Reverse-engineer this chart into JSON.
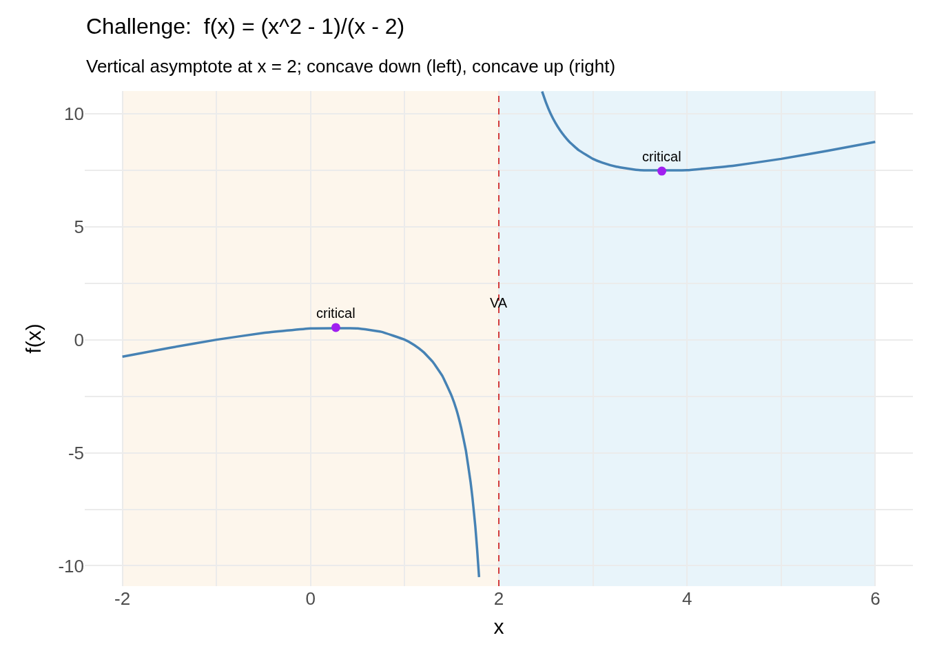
{
  "chart_data": {
    "type": "line",
    "title": "Challenge:  f(x) = (x^2 - 1)/(x - 2)",
    "subtitle": "Vertical asymptote at x = 2; concave down (left), concave up (right)",
    "xlabel": "x",
    "ylabel": "f(x)",
    "xlim": [
      -2.4,
      6.4
    ],
    "ylim": [
      -10.9,
      11
    ],
    "xticks": [
      -2,
      {
        "value": -1,
        "label": null
      },
      0,
      {
        "value": 1,
        "label": null
      },
      2,
      {
        "value": 3,
        "label": null
      },
      4,
      {
        "value": 5,
        "label": null
      },
      6
    ],
    "yticks": [
      -10,
      {
        "value": -7.5,
        "label": null
      },
      -5,
      {
        "value": -2.5,
        "label": null
      },
      0,
      {
        "value": 2.5,
        "label": null
      },
      5,
      {
        "value": 7.5,
        "label": null
      },
      10
    ],
    "grid": true,
    "marker": "none",
    "line_style": "solid",
    "series": [
      {
        "color": "#4682b4",
        "x": [
          -2,
          -1.5,
          -1,
          -0.5,
          0,
          0.5,
          0.75,
          1,
          1.1,
          1.2,
          1.3,
          1.4,
          1.5,
          1.55,
          1.6,
          1.65,
          1.7,
          1.72,
          1.75,
          1.77,
          1.79
        ],
        "values": [
          -0.75,
          -0.36,
          0,
          0.3,
          0.5,
          0.5,
          0.35,
          0,
          -0.23,
          -0.55,
          -0.99,
          -1.6,
          -2.5,
          -3.1,
          -3.9,
          -4.9,
          -6.3,
          -7.0,
          -8.25,
          -9.3,
          -10.5
        ]
      },
      {
        "color": "#4682b4",
        "x": [
          2.46,
          2.5,
          2.55,
          2.6,
          2.65,
          2.7,
          2.75,
          2.85,
          3,
          3.1,
          3.25,
          3.5,
          4,
          4.5,
          5,
          5.5,
          6
        ],
        "values": [
          10.98,
          10.5,
          10.0,
          9.6,
          9.27,
          8.99,
          8.75,
          8.38,
          8,
          7.83,
          7.65,
          7.5,
          7.5,
          7.7,
          8,
          8.36,
          8.75
        ]
      },
      {
        "type": "scatter",
        "marker": "circle",
        "color": "#a020f0",
        "x": [
          0.268,
          3.732
        ],
        "values": [
          0.54,
          7.46
        ]
      }
    ],
    "ref_lines": [
      {
        "axis": "x",
        "value": 2,
        "color": "#cc0000",
        "line_style": "dashed"
      }
    ],
    "bands": [
      {
        "axis": "x",
        "from": -2,
        "to": 2,
        "color": "#fdf6ec"
      },
      {
        "axis": "x",
        "from": 2,
        "to": 6,
        "color": "#e8f4fa"
      }
    ],
    "annotations": [
      {
        "text": "critical",
        "x": 0.268,
        "y": 0.54
      },
      {
        "text": "critical",
        "x": 3.732,
        "y": 7.46
      },
      {
        "text": "VA",
        "x": 2,
        "y": 1
      }
    ]
  }
}
